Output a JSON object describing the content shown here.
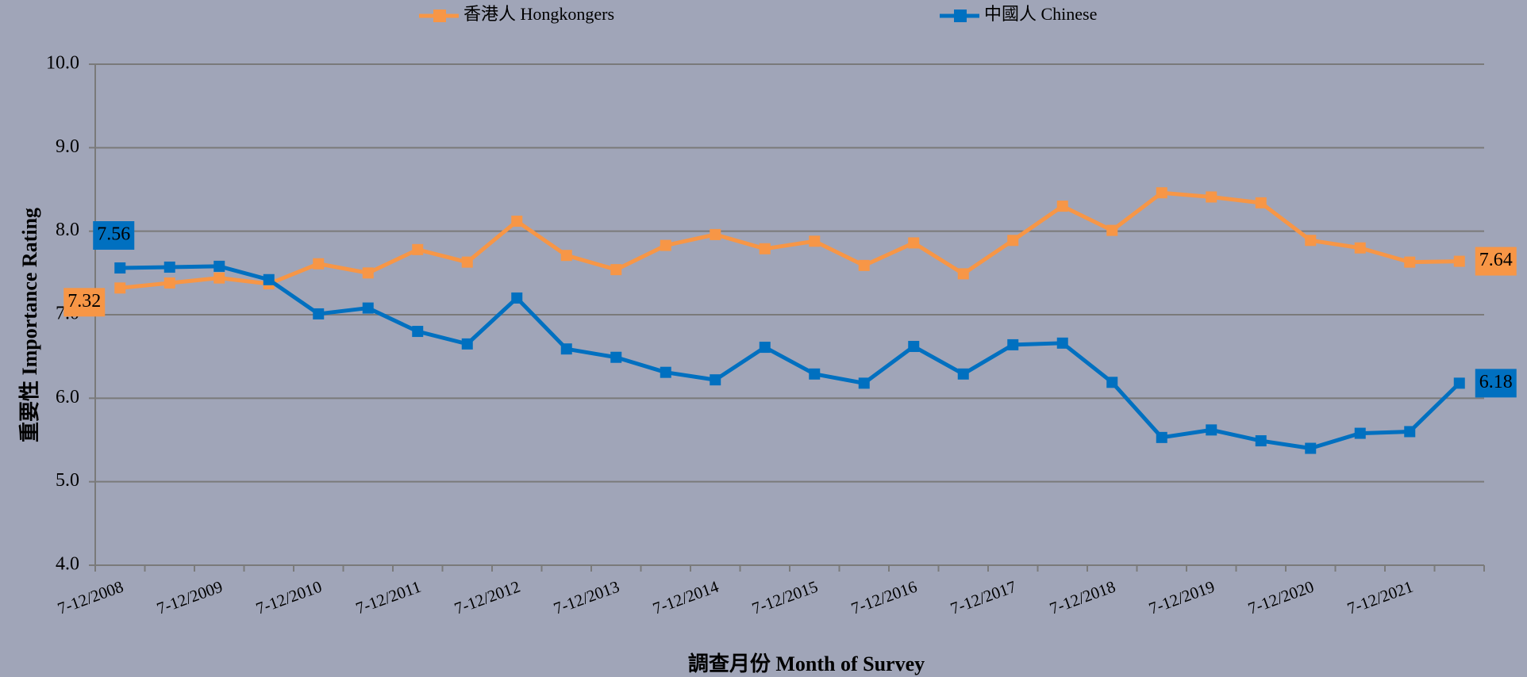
{
  "chart_data": {
    "type": "line",
    "x_label": "調查月份 Month of Survey",
    "y_label": "重要性 Importance Rating",
    "categories": [
      "7-12/2008",
      null,
      "7-12/2009",
      null,
      "7-12/2010",
      null,
      "7-12/2011",
      null,
      "7-12/2012",
      null,
      "7-12/2013",
      null,
      "7-12/2014",
      null,
      "7-12/2015",
      null,
      "7-12/2016",
      null,
      "7-12/2017",
      null,
      "7-12/2018",
      null,
      "7-12/2019",
      null,
      "7-12/2020",
      null,
      "7-12/2021",
      null
    ],
    "series": [
      {
        "name": "香港人 Hongkongers",
        "color": "#f79646",
        "values": [
          7.32,
          7.38,
          7.44,
          7.37,
          7.61,
          7.5,
          7.78,
          7.63,
          8.12,
          7.71,
          7.54,
          7.83,
          7.96,
          7.79,
          7.88,
          7.59,
          7.86,
          7.49,
          7.89,
          8.3,
          8.01,
          8.46,
          8.41,
          8.34,
          7.89,
          7.8,
          7.63,
          7.64
        ],
        "value_labels": [
          "7.32",
          null,
          null,
          null,
          null,
          null,
          null,
          null,
          null,
          null,
          null,
          null,
          null,
          null,
          null,
          null,
          null,
          null,
          null,
          null,
          null,
          null,
          null,
          null,
          null,
          null,
          null,
          "7.64"
        ]
      },
      {
        "name": "中國人 Chinese",
        "color": "#0070c0",
        "values": [
          7.56,
          7.57,
          7.58,
          7.42,
          7.01,
          7.08,
          6.8,
          6.65,
          7.2,
          6.59,
          6.49,
          6.31,
          6.22,
          6.61,
          6.29,
          6.18,
          6.62,
          6.29,
          6.64,
          6.66,
          6.19,
          5.53,
          5.62,
          5.49,
          5.4,
          5.58,
          5.6,
          6.18
        ],
        "value_labels": [
          "7.56",
          null,
          null,
          null,
          null,
          null,
          null,
          null,
          null,
          null,
          null,
          null,
          null,
          null,
          null,
          null,
          null,
          null,
          null,
          null,
          null,
          null,
          null,
          null,
          null,
          null,
          null,
          "6.18"
        ]
      }
    ],
    "ylim": [
      4,
      10
    ],
    "yticks": [
      {
        "value": 4,
        "label": "4.0"
      },
      {
        "value": 5,
        "label": "5.0"
      },
      {
        "value": 6,
        "label": "6.0"
      },
      {
        "value": 7,
        "label": "7.0"
      },
      {
        "value": 8,
        "label": "8.0"
      },
      {
        "value": 9,
        "label": "9.0"
      },
      {
        "value": 10,
        "label": "10.0"
      }
    ],
    "grid": true
  }
}
